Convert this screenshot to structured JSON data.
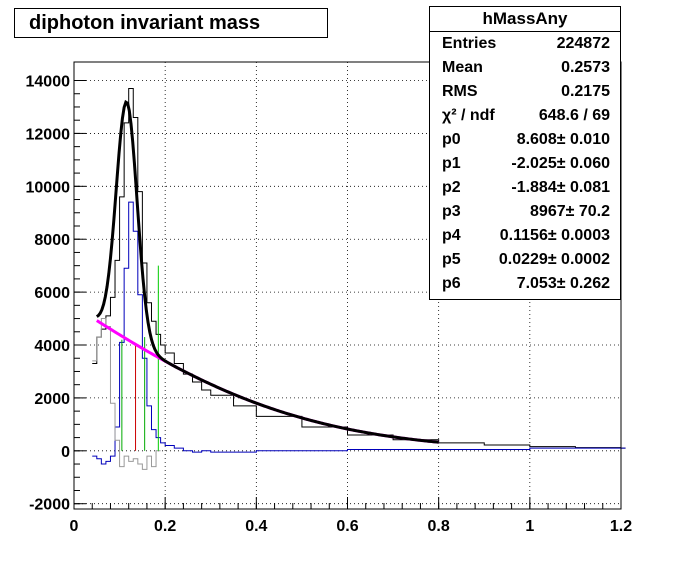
{
  "chart_data": {
    "type": "line",
    "title": "diphoton invariant mass",
    "xlabel": "",
    "ylabel": "",
    "xlim": [
      0,
      1.2
    ],
    "ylim": [
      -2200,
      14700
    ],
    "grid": true,
    "x_ticks": [
      0,
      0.2,
      0.4,
      0.6,
      0.8,
      1,
      1.2
    ],
    "x_tick_labels": [
      "0",
      "0.2",
      "0.4",
      "0.6",
      "0.8",
      "1",
      "1.2"
    ],
    "y_ticks": [
      -2000,
      0,
      2000,
      4000,
      6000,
      8000,
      10000,
      12000,
      14000
    ],
    "y_tick_labels": [
      "-2000",
      "0",
      "2000",
      "4000",
      "6000",
      "8000",
      "10000",
      "12000",
      "14000"
    ],
    "stats": {
      "name": "hMassAny",
      "rows": [
        {
          "key": "Entries",
          "value": "224872"
        },
        {
          "key": "Mean",
          "value": "0.2573"
        },
        {
          "key": "RMS",
          "value": "0.2175"
        },
        {
          "key": "χ² / ndf",
          "value": "648.6 / 69"
        },
        {
          "key": "p0",
          "value": "8.608± 0.010"
        },
        {
          "key": "p1",
          "value": "-2.025± 0.060"
        },
        {
          "key": "p2",
          "value": "-1.884± 0.081"
        },
        {
          "key": "p3",
          "value": "8967± 70.2"
        },
        {
          "key": "p4",
          "value": "0.1156± 0.0003"
        },
        {
          "key": "p5",
          "value": "0.0229± 0.0002"
        },
        {
          "key": "p6",
          "value": "7.053± 0.262"
        }
      ]
    },
    "fit": {
      "p0": 8.608,
      "p1": -2.025,
      "p2": -1.884,
      "p3": 8967,
      "p4": 0.1156,
      "p5": 0.0229,
      "p6": 7.053
    },
    "series": [
      {
        "color": "#000000",
        "style": "hist",
        "x": [
          0.04,
          0.05,
          0.06,
          0.07,
          0.08,
          0.09,
          0.1,
          0.11,
          0.12,
          0.13,
          0.14,
          0.15,
          0.16,
          0.17,
          0.18,
          0.19,
          0.2,
          0.22,
          0.24,
          0.26,
          0.28,
          0.3,
          0.35,
          0.4,
          0.5,
          0.6,
          0.7,
          0.8,
          0.9,
          1.0,
          1.1,
          1.2
        ],
        "values": [
          3300,
          4300,
          4600,
          5100,
          5800,
          7200,
          9600,
          12400,
          13700,
          12600,
          9800,
          7100,
          5600,
          4900,
          4400,
          4000,
          3700,
          3300,
          2900,
          2600,
          2300,
          2100,
          1700,
          1300,
          900,
          600,
          420,
          300,
          220,
          160,
          120,
          100
        ]
      },
      {
        "color": "#0000bb",
        "style": "hist",
        "x": [
          0.04,
          0.05,
          0.06,
          0.07,
          0.08,
          0.09,
          0.1,
          0.11,
          0.12,
          0.13,
          0.14,
          0.15,
          0.16,
          0.17,
          0.18,
          0.19,
          0.2,
          0.22,
          0.24,
          0.26,
          0.28,
          0.3,
          0.4,
          0.6,
          0.8,
          1.0,
          1.2
        ],
        "values": [
          -200,
          -300,
          -500,
          -400,
          -200,
          900,
          4100,
          6900,
          9400,
          8300,
          5900,
          3500,
          1700,
          800,
          500,
          300,
          200,
          100,
          0,
          -50,
          0,
          -50,
          0,
          50,
          50,
          100,
          100
        ]
      },
      {
        "color": "#999999",
        "style": "hist",
        "x": [
          0.04,
          0.05,
          0.06,
          0.07,
          0.08,
          0.09,
          0.1,
          0.11,
          0.12,
          0.13,
          0.14,
          0.15,
          0.16,
          0.17,
          0.18
        ],
        "values": [
          3400,
          4300,
          5000,
          4700,
          1800,
          400,
          -600,
          -200,
          -400,
          -300,
          -500,
          -700,
          -200,
          -600,
          0
        ]
      },
      {
        "color": "#ff00ff",
        "style": "curve",
        "x_range": [
          0.05,
          0.8
        ]
      },
      {
        "color": "#000000",
        "style": "fit",
        "x_range": [
          0.05,
          0.8
        ]
      }
    ],
    "markers": [
      {
        "x": 0.105,
        "height": 4200,
        "color": "#00aa00"
      },
      {
        "x": 0.135,
        "height": 4000,
        "color": "#cc0000"
      },
      {
        "x": 0.155,
        "height": 4300,
        "color": "#00aa00"
      },
      {
        "x": 0.185,
        "height": 7000,
        "color": "#00cc00"
      }
    ]
  }
}
